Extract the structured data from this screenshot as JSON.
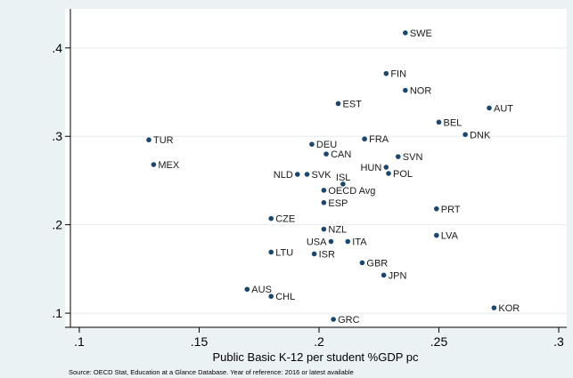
{
  "chart_data": {
    "type": "scatter",
    "xlabel": "Public Basic K-12 per student %GDP pc",
    "ylabel": "",
    "xlim": [
      0.1,
      0.3
    ],
    "ylim": [
      0.085,
      0.43
    ],
    "xticks": [
      0.1,
      0.15,
      0.2,
      0.25,
      0.3
    ],
    "xtick_labels": [
      ".1",
      ".15",
      ".2",
      ".25",
      ".3"
    ],
    "yticks": [
      0.1,
      0.2,
      0.3,
      0.4
    ],
    "ytick_labels": [
      ".1",
      ".2",
      ".3",
      ".4"
    ],
    "grid": "horizontal",
    "note": "Source: OECD Stat, Education at a Glance Database. Year of reference: 2016 or latest available",
    "points": [
      {
        "label": "SWE",
        "x": 0.236,
        "y": 0.417,
        "pos": "right"
      },
      {
        "label": "FIN",
        "x": 0.228,
        "y": 0.371,
        "pos": "right"
      },
      {
        "label": "NOR",
        "x": 0.236,
        "y": 0.352,
        "pos": "right"
      },
      {
        "label": "EST",
        "x": 0.208,
        "y": 0.337,
        "pos": "right"
      },
      {
        "label": "AUT",
        "x": 0.271,
        "y": 0.332,
        "pos": "right"
      },
      {
        "label": "BEL",
        "x": 0.25,
        "y": 0.316,
        "pos": "right"
      },
      {
        "label": "DNK",
        "x": 0.261,
        "y": 0.302,
        "pos": "right"
      },
      {
        "label": "TUR",
        "x": 0.129,
        "y": 0.296,
        "pos": "right"
      },
      {
        "label": "FRA",
        "x": 0.219,
        "y": 0.297,
        "pos": "right"
      },
      {
        "label": "DEU",
        "x": 0.197,
        "y": 0.291,
        "pos": "right"
      },
      {
        "label": "CAN",
        "x": 0.203,
        "y": 0.28,
        "pos": "right"
      },
      {
        "label": "SVN",
        "x": 0.233,
        "y": 0.277,
        "pos": "right"
      },
      {
        "label": "MEX",
        "x": 0.131,
        "y": 0.268,
        "pos": "right"
      },
      {
        "label": "HUN",
        "x": 0.228,
        "y": 0.265,
        "pos": "left"
      },
      {
        "label": "POL",
        "x": 0.229,
        "y": 0.258,
        "pos": "right"
      },
      {
        "label": "NLD",
        "x": 0.191,
        "y": 0.257,
        "pos": "left"
      },
      {
        "label": "SVK",
        "x": 0.195,
        "y": 0.257,
        "pos": "right"
      },
      {
        "label": "ISL",
        "x": 0.21,
        "y": 0.246,
        "pos": "above"
      },
      {
        "label": "OECD Avg",
        "x": 0.202,
        "y": 0.239,
        "pos": "right"
      },
      {
        "label": "ESP",
        "x": 0.202,
        "y": 0.225,
        "pos": "right"
      },
      {
        "label": "PRT",
        "x": 0.249,
        "y": 0.218,
        "pos": "right"
      },
      {
        "label": "CZE",
        "x": 0.18,
        "y": 0.207,
        "pos": "right"
      },
      {
        "label": "NZL",
        "x": 0.202,
        "y": 0.195,
        "pos": "right"
      },
      {
        "label": "LVA",
        "x": 0.249,
        "y": 0.188,
        "pos": "right"
      },
      {
        "label": "USA",
        "x": 0.205,
        "y": 0.181,
        "pos": "left"
      },
      {
        "label": "ITA",
        "x": 0.212,
        "y": 0.181,
        "pos": "right"
      },
      {
        "label": "LTU",
        "x": 0.18,
        "y": 0.169,
        "pos": "right"
      },
      {
        "label": "ISR",
        "x": 0.198,
        "y": 0.167,
        "pos": "right"
      },
      {
        "label": "GBR",
        "x": 0.218,
        "y": 0.157,
        "pos": "right"
      },
      {
        "label": "JPN",
        "x": 0.227,
        "y": 0.143,
        "pos": "right"
      },
      {
        "label": "AUS",
        "x": 0.17,
        "y": 0.127,
        "pos": "right"
      },
      {
        "label": "CHL",
        "x": 0.18,
        "y": 0.119,
        "pos": "right"
      },
      {
        "label": "KOR",
        "x": 0.273,
        "y": 0.106,
        "pos": "right"
      },
      {
        "label": "GRC",
        "x": 0.206,
        "y": 0.093,
        "pos": "right"
      }
    ]
  },
  "colors": {
    "background": "#eaf2f3",
    "plot_background": "#ffffff",
    "grid": "#e4ecef",
    "marker": "#1a476f",
    "axis": "#000000"
  }
}
